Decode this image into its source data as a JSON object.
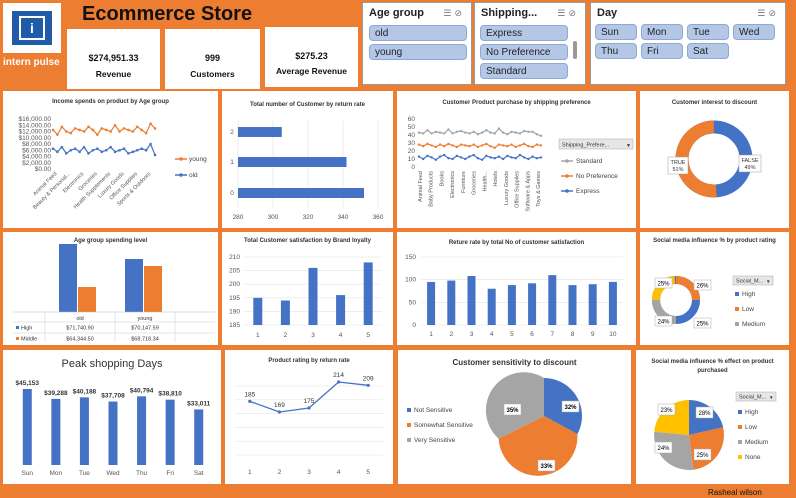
{
  "header": {
    "title": "Ecommerce Store",
    "brand": "intern pulse",
    "logo_glyph": "i",
    "footer_credit": "Rasheal wilson"
  },
  "kpis": [
    {
      "value": "$274,951.33",
      "label": "Revenue"
    },
    {
      "value": "999",
      "label": "Customers"
    },
    {
      "value": "$275.23",
      "label": "Average Revenue"
    }
  ],
  "slicers": {
    "age": {
      "title": "Age group",
      "items": [
        "old",
        "young"
      ]
    },
    "shipping": {
      "title": "Shipping...",
      "items": [
        "Express",
        "No Preference",
        "Standard"
      ]
    },
    "day": {
      "title": "Day",
      "items": [
        "Sun",
        "Mon",
        "Tue",
        "Wed",
        "Thu",
        "Fri",
        "Sat"
      ]
    }
  },
  "colors": {
    "orange": "#ED7D31",
    "blue": "#4472C4",
    "gray": "#A5A5A5",
    "yellow": "#FFC000",
    "navy": "#1F3D7A"
  },
  "charts": {
    "c1": {
      "title": "Income spends on product by Age group",
      "yticks": [
        "$16,000.00",
        "$14,000.00",
        "$12,000.00",
        "$10,000.00",
        "$8,000.00",
        "$6,000.00",
        "$4,000.00",
        "$2,000.00",
        "$0.00"
      ],
      "categories": [
        "Animal Feed",
        "Beauty & Personal...",
        "Electronics",
        "Groceries",
        "Health Supplements",
        "Luxury Goods",
        "Office Supplies",
        "Sports & Outdoors"
      ],
      "series": [
        {
          "name": "young"
        },
        {
          "name": "old"
        }
      ]
    },
    "c2": {
      "title": "Total number of Customer by return rate",
      "ylabels": [
        "2",
        "1",
        "0"
      ],
      "xticks": [
        "280",
        "300",
        "320",
        "340",
        "360"
      ]
    },
    "c3": {
      "title": "Customer Product purchase by shipping preference",
      "yticks": [
        "60",
        "50",
        "40",
        "30",
        "20",
        "10",
        "0"
      ],
      "categories": [
        "Animal Feed",
        "Baby Products",
        "Books",
        "Electronics",
        "Furniture",
        "Groceries",
        "Health...",
        "Hotels",
        "Luxury Goods",
        "Office Supplies",
        "Software & Apps",
        "Toys & Games"
      ],
      "filter_label": "Shipping_Prefere...",
      "series": [
        {
          "name": "Standard"
        },
        {
          "name": "No Preference"
        },
        {
          "name": "Express"
        }
      ]
    },
    "c4": {
      "title": "Customer interest to discount",
      "true_label": "TRUE",
      "true_pct": "51%",
      "false_label": "FALSE",
      "false_pct": "49%"
    },
    "c5": {
      "title": "Age group spending level",
      "col_old": "old",
      "col_young": "young",
      "row_high": "High",
      "row_middle": "Middle",
      "high_old": "$71,740.90",
      "high_young": "$70,147.59",
      "mid_old": "$64,344.50",
      "mid_young": "$68,718.34"
    },
    "c6": {
      "title": "Total Customer satisfaction by Brand loyalty",
      "yticks": [
        "210",
        "205",
        "200",
        "195",
        "190",
        "185"
      ],
      "xlabels": [
        "1",
        "2",
        "3",
        "4",
        "5"
      ]
    },
    "c7": {
      "title": "Reture rate by total No of customer satisfaction",
      "yticks": [
        "150",
        "100",
        "50",
        "0"
      ],
      "xlabels": [
        "1",
        "2",
        "3",
        "4",
        "5",
        "6",
        "7",
        "8",
        "9",
        "10"
      ]
    },
    "c8": {
      "title": "Social media influence % by product rating",
      "filter_label": "Social_M...",
      "slices": [
        "25%",
        "26%",
        "25%",
        "24%"
      ],
      "legend": [
        "High",
        "Low",
        "Medium"
      ]
    },
    "c9": {
      "title": "Peak shopping Days",
      "days": [
        "Sun",
        "Mon",
        "Tue",
        "Wed",
        "Thu",
        "Fri",
        "Sat"
      ],
      "labels": [
        "$45,153",
        "$39,288",
        "$40,188",
        "$37,708",
        "$40,794",
        "$38,810",
        "$33,011"
      ]
    },
    "c10": {
      "title": "Product rating by return rate",
      "xlabels": [
        "1",
        "2",
        "3",
        "4",
        "5"
      ],
      "labels": [
        "185",
        "169",
        "175",
        "214",
        "209"
      ]
    },
    "c11": {
      "title": "Customer sensitivity to discount",
      "legend": [
        "Not Sensitive",
        "Somewhat Sensitive",
        "Very Sensitive"
      ],
      "slices": [
        "32%",
        "33%",
        "35%"
      ]
    },
    "c12": {
      "title": "Social media influence % effect on product purchased",
      "filter_label": "Social_M...",
      "slices": [
        "28%",
        "25%",
        "24%",
        "23%"
      ],
      "legend": [
        "High",
        "Low",
        "Medium",
        "None"
      ]
    }
  },
  "chart_data": [
    {
      "type": "line",
      "title": "Income spends on product by Age group",
      "ylim": [
        0,
        16000
      ],
      "series": [
        {
          "name": "young",
          "values": [
            12500,
            11000,
            13500,
            12000,
            11500,
            13000,
            12500,
            12000,
            13500,
            12500,
            11000,
            13000,
            12500,
            12000,
            14000,
            12000,
            13000,
            12500,
            12000,
            13500,
            12500,
            11500,
            14500,
            13000
          ]
        },
        {
          "name": "old",
          "values": [
            6500,
            5500,
            7000,
            5000,
            6000,
            6500,
            5500,
            7000,
            5000,
            6000,
            6500,
            5500,
            6000,
            7000,
            5500,
            6000,
            6500,
            5000,
            5500,
            6000,
            6500,
            6000,
            8000,
            4500
          ]
        }
      ]
    },
    {
      "type": "bar",
      "title": "Total number of Customer by return rate",
      "categories": [
        "0",
        "1",
        "2"
      ],
      "values": [
        352,
        342,
        305
      ],
      "xlim": [
        280,
        360
      ]
    },
    {
      "type": "line",
      "title": "Customer Product purchase by shipping preference",
      "ylim": [
        0,
        60
      ],
      "series": [
        {
          "name": "Standard",
          "values": [
            43,
            42,
            46,
            42,
            44,
            43,
            42,
            47,
            42,
            44,
            45,
            43,
            42,
            44,
            41,
            43,
            46,
            43,
            42,
            48,
            43,
            41,
            44,
            43,
            42,
            45,
            44,
            44,
            41,
            39
          ]
        },
        {
          "name": "No Preference",
          "values": [
            28,
            26,
            29,
            27,
            25,
            28,
            26,
            29,
            27,
            25,
            28,
            27,
            26,
            28,
            25,
            27,
            29,
            26,
            24,
            28,
            27,
            26,
            28,
            25,
            27,
            29,
            26,
            25,
            28,
            27
          ]
        },
        {
          "name": "Express",
          "values": [
            13,
            10,
            14,
            12,
            9,
            13,
            15,
            11,
            10,
            14,
            12,
            10,
            13,
            15,
            11,
            9,
            14,
            12,
            11,
            13,
            10,
            14,
            12,
            11,
            15,
            12,
            10,
            13,
            11,
            12
          ]
        }
      ]
    },
    {
      "type": "pie",
      "title": "Customer interest to discount",
      "categories": [
        "TRUE",
        "FALSE"
      ],
      "values": [
        51,
        49
      ]
    },
    {
      "type": "bar",
      "title": "Age group spending level",
      "categories": [
        "old",
        "young"
      ],
      "series": [
        {
          "name": "High",
          "values": [
            71740.9,
            70147.59
          ]
        },
        {
          "name": "Middle",
          "values": [
            64344.5,
            68718.34
          ]
        }
      ]
    },
    {
      "type": "bar",
      "title": "Total Customer satisfaction by Brand loyalty",
      "categories": [
        "1",
        "2",
        "3",
        "4",
        "5"
      ],
      "values": [
        195,
        194,
        206,
        196,
        208
      ],
      "ylim": [
        185,
        210
      ]
    },
    {
      "type": "bar",
      "title": "Reture rate by total No of customer satisfaction",
      "categories": [
        "1",
        "2",
        "3",
        "4",
        "5",
        "6",
        "7",
        "8",
        "9",
        "10"
      ],
      "values": [
        95,
        98,
        108,
        80,
        88,
        92,
        110,
        88,
        90,
        95
      ],
      "ylim": [
        0,
        150
      ]
    },
    {
      "type": "pie",
      "title": "Social media influence % by product rating",
      "values": [
        25,
        26,
        25,
        24
      ]
    },
    {
      "type": "bar",
      "title": "Peak shopping Days",
      "categories": [
        "Sun",
        "Mon",
        "Tue",
        "Wed",
        "Thu",
        "Fri",
        "Sat"
      ],
      "values": [
        45153,
        39288,
        40188,
        37708,
        40794,
        38810,
        33011
      ]
    },
    {
      "type": "line",
      "title": "Product rating by return rate",
      "categories": [
        "1",
        "2",
        "3",
        "4",
        "5"
      ],
      "values": [
        185,
        169,
        175,
        214,
        209
      ]
    },
    {
      "type": "pie",
      "title": "Customer sensitivity to discount",
      "categories": [
        "Not Sensitive",
        "Somewhat Sensitive",
        "Very Sensitive"
      ],
      "values": [
        32,
        33,
        35
      ]
    },
    {
      "type": "pie",
      "title": "Social media influence % effect on product purchased",
      "categories": [
        "High",
        "Low",
        "Medium",
        "None"
      ],
      "values": [
        28,
        25,
        24,
        23
      ]
    }
  ]
}
